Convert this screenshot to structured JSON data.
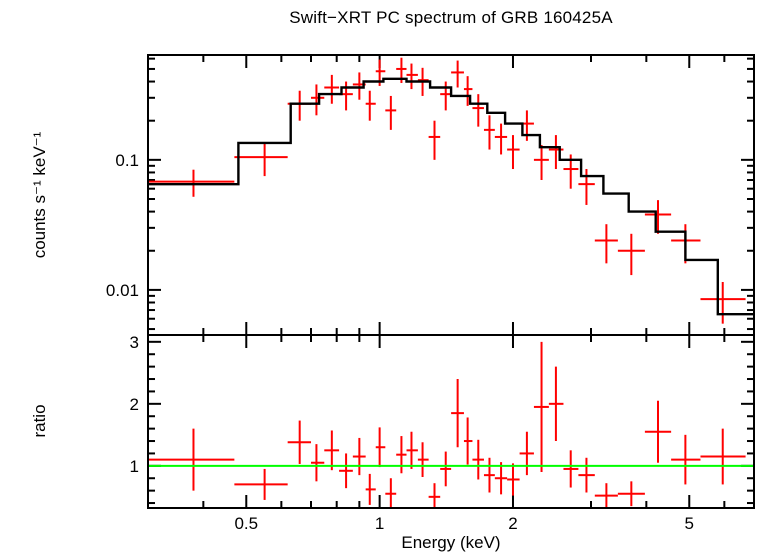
{
  "chart_data": {
    "type": "line",
    "title": "Swift−XRT PC spectrum of GRB 160425A",
    "xlabel": "Energy (keV)",
    "xscale": "log",
    "xlim": [
      0.3,
      7.0
    ],
    "xticks": [
      {
        "value": 0.5,
        "label": "0.5"
      },
      {
        "value": 1,
        "label": "1"
      },
      {
        "value": 2,
        "label": "2"
      },
      {
        "value": 5,
        "label": "5"
      }
    ],
    "colors": {
      "data": "#ff0000",
      "model": "#000000",
      "reference": "#00ff00",
      "frame": "#000000",
      "background": "#ffffff"
    },
    "panels": [
      {
        "name": "spectrum",
        "ylabel": "counts s⁻¹ keV⁻¹",
        "yscale": "log",
        "ylim": [
          0.0045,
          0.64
        ],
        "yticks": [
          {
            "value": 0.1,
            "label": "0.1"
          },
          {
            "value": 0.01,
            "label": "0.01"
          }
        ],
        "series": [
          {
            "name": "observed-spectrum",
            "type": "errorbar",
            "color": "#ff0000",
            "columns": [
              "energy_keV",
              "energy_lo_keV",
              "energy_hi_keV",
              "rate_counts_s_keV",
              "rate_err"
            ],
            "rows": [
              [
                0.38,
                0.3,
                0.47,
                0.068,
                0.016
              ],
              [
                0.55,
                0.47,
                0.62,
                0.105,
                0.03
              ],
              [
                0.66,
                0.62,
                0.7,
                0.27,
                0.07
              ],
              [
                0.72,
                0.7,
                0.75,
                0.3,
                0.08
              ],
              [
                0.78,
                0.75,
                0.81,
                0.36,
                0.09
              ],
              [
                0.84,
                0.81,
                0.87,
                0.32,
                0.08
              ],
              [
                0.9,
                0.87,
                0.93,
                0.38,
                0.09
              ],
              [
                0.95,
                0.93,
                0.98,
                0.27,
                0.07
              ],
              [
                1.0,
                0.98,
                1.03,
                0.48,
                0.11
              ],
              [
                1.06,
                1.03,
                1.09,
                0.24,
                0.07
              ],
              [
                1.12,
                1.09,
                1.15,
                0.5,
                0.11
              ],
              [
                1.18,
                1.15,
                1.22,
                0.45,
                0.1
              ],
              [
                1.25,
                1.22,
                1.29,
                0.41,
                0.1
              ],
              [
                1.33,
                1.29,
                1.37,
                0.15,
                0.05
              ],
              [
                1.41,
                1.37,
                1.45,
                0.32,
                0.08
              ],
              [
                1.5,
                1.45,
                1.55,
                0.47,
                0.11
              ],
              [
                1.58,
                1.55,
                1.62,
                0.35,
                0.09
              ],
              [
                1.67,
                1.62,
                1.72,
                0.25,
                0.07
              ],
              [
                1.77,
                1.72,
                1.82,
                0.17,
                0.05
              ],
              [
                1.88,
                1.82,
                1.94,
                0.15,
                0.04
              ],
              [
                2.0,
                1.94,
                2.07,
                0.12,
                0.035
              ],
              [
                2.15,
                2.07,
                2.23,
                0.19,
                0.05
              ],
              [
                2.32,
                2.23,
                2.41,
                0.1,
                0.03
              ],
              [
                2.5,
                2.41,
                2.6,
                0.12,
                0.035
              ],
              [
                2.7,
                2.6,
                2.81,
                0.085,
                0.025
              ],
              [
                2.93,
                2.81,
                3.06,
                0.065,
                0.02
              ],
              [
                3.25,
                3.06,
                3.45,
                0.024,
                0.008
              ],
              [
                3.7,
                3.45,
                3.97,
                0.02,
                0.007
              ],
              [
                4.25,
                3.97,
                4.55,
                0.038,
                0.011
              ],
              [
                4.9,
                4.55,
                5.3,
                0.024,
                0.008
              ],
              [
                5.95,
                5.3,
                6.7,
                0.0085,
                0.003
              ]
            ]
          },
          {
            "name": "model-step-line",
            "type": "step",
            "color": "#000000",
            "columns": [
              "energy_lo_keV",
              "energy_hi_keV",
              "model_rate"
            ],
            "rows": [
              [
                0.3,
                0.48,
                0.065
              ],
              [
                0.48,
                0.63,
                0.135
              ],
              [
                0.63,
                0.73,
                0.27
              ],
              [
                0.73,
                0.82,
                0.32
              ],
              [
                0.82,
                0.92,
                0.36
              ],
              [
                0.92,
                1.02,
                0.4
              ],
              [
                1.02,
                1.15,
                0.42
              ],
              [
                1.15,
                1.3,
                0.4
              ],
              [
                1.3,
                1.45,
                0.36
              ],
              [
                1.45,
                1.6,
                0.31
              ],
              [
                1.6,
                1.75,
                0.27
              ],
              [
                1.75,
                1.92,
                0.23
              ],
              [
                1.92,
                2.1,
                0.19
              ],
              [
                2.1,
                2.3,
                0.155
              ],
              [
                2.3,
                2.55,
                0.125
              ],
              [
                2.55,
                2.85,
                0.1
              ],
              [
                2.85,
                3.2,
                0.075
              ],
              [
                3.2,
                3.65,
                0.055
              ],
              [
                3.65,
                4.2,
                0.04
              ],
              [
                4.2,
                4.9,
                0.028
              ],
              [
                4.9,
                5.8,
                0.017
              ],
              [
                5.8,
                7.0,
                0.0065
              ]
            ]
          }
        ]
      },
      {
        "name": "ratio",
        "ylabel": "ratio",
        "yscale": "linear",
        "ylim": [
          0.32,
          3.11
        ],
        "minor_tick_step": 0.2,
        "yticks": [
          {
            "value": 1,
            "label": "1"
          },
          {
            "value": 2,
            "label": "2"
          },
          {
            "value": 3,
            "label": "3"
          }
        ],
        "series": [
          {
            "name": "data-to-model-ratio",
            "type": "errorbar",
            "color": "#ff0000",
            "columns": [
              "energy_keV",
              "energy_lo_keV",
              "energy_hi_keV",
              "ratio",
              "ratio_err"
            ],
            "rows": [
              [
                0.38,
                0.3,
                0.47,
                1.1,
                0.5
              ],
              [
                0.55,
                0.47,
                0.62,
                0.7,
                0.25
              ],
              [
                0.66,
                0.62,
                0.7,
                1.38,
                0.35
              ],
              [
                0.72,
                0.7,
                0.75,
                1.05,
                0.3
              ],
              [
                0.78,
                0.75,
                0.81,
                1.25,
                0.32
              ],
              [
                0.84,
                0.81,
                0.87,
                0.92,
                0.28
              ],
              [
                0.9,
                0.87,
                0.93,
                1.15,
                0.3
              ],
              [
                0.95,
                0.93,
                0.98,
                0.62,
                0.25
              ],
              [
                1.0,
                0.98,
                1.03,
                1.3,
                0.32
              ],
              [
                1.06,
                1.03,
                1.09,
                0.55,
                0.25
              ],
              [
                1.12,
                1.09,
                1.15,
                1.18,
                0.3
              ],
              [
                1.18,
                1.15,
                1.22,
                1.25,
                0.3
              ],
              [
                1.25,
                1.22,
                1.29,
                1.1,
                0.28
              ],
              [
                1.33,
                1.29,
                1.37,
                0.5,
                0.22
              ],
              [
                1.41,
                1.37,
                1.45,
                0.95,
                0.28
              ],
              [
                1.5,
                1.45,
                1.55,
                1.85,
                0.55
              ],
              [
                1.58,
                1.55,
                1.62,
                1.4,
                0.38
              ],
              [
                1.67,
                1.62,
                1.72,
                1.1,
                0.32
              ],
              [
                1.77,
                1.72,
                1.82,
                0.85,
                0.28
              ],
              [
                1.88,
                1.82,
                1.94,
                0.8,
                0.26
              ],
              [
                2.0,
                1.94,
                2.07,
                0.78,
                0.26
              ],
              [
                2.15,
                2.07,
                2.23,
                1.2,
                0.35
              ],
              [
                2.32,
                2.23,
                2.41,
                1.95,
                1.05
              ],
              [
                2.5,
                2.41,
                2.6,
                2.0,
                0.6
              ],
              [
                2.7,
                2.6,
                2.81,
                0.95,
                0.3
              ],
              [
                2.93,
                2.81,
                3.06,
                0.85,
                0.28
              ],
              [
                3.25,
                3.06,
                3.45,
                0.52,
                0.2
              ],
              [
                3.7,
                3.45,
                3.97,
                0.55,
                0.2
              ],
              [
                4.25,
                3.97,
                4.55,
                1.55,
                0.5
              ],
              [
                4.9,
                4.55,
                5.3,
                1.1,
                0.4
              ],
              [
                5.95,
                5.3,
                6.7,
                1.15,
                0.45
              ]
            ]
          },
          {
            "name": "unity-reference-line",
            "type": "hline",
            "color": "#00ff00",
            "y": 1
          }
        ]
      }
    ]
  }
}
